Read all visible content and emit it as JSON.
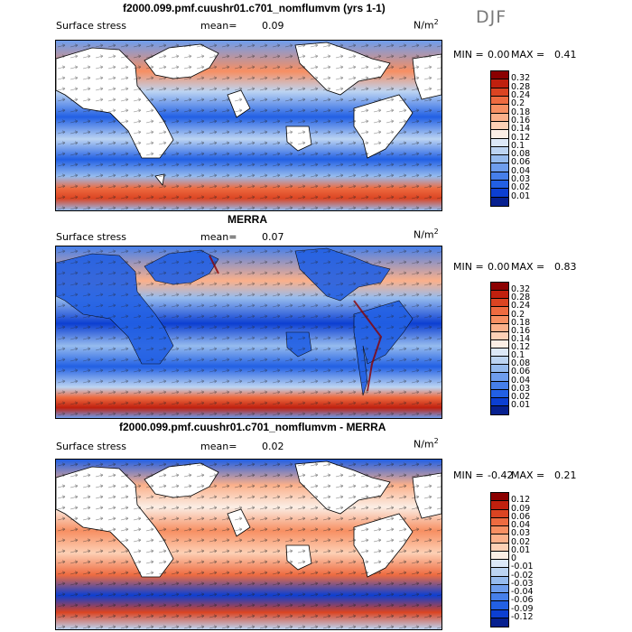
{
  "season": "DJF",
  "panels": [
    {
      "id": "model",
      "title": "f2000.099.pmf.cuushr01.c701_nomflumvm (yrs 1-1)",
      "variable": "Surface stress",
      "mean_label": "mean=",
      "mean_value": "0.09",
      "units": "N/m",
      "units_sup": "2",
      "min_label": "MIN =",
      "min_value": "0.00",
      "max_label": "MAX =",
      "max_value": "0.41",
      "ticks": [
        "0.32",
        "0.28",
        "0.24",
        "0.2",
        "0.18",
        "0.16",
        "0.14",
        "0.12",
        "0.1",
        "0.08",
        "0.06",
        "0.04",
        "0.03",
        "0.02",
        "0.01"
      ],
      "colors": [
        "#8b0000",
        "#c0200e",
        "#db4422",
        "#ee6b40",
        "#f78f62",
        "#fbb08a",
        "#fdd0b5",
        "#fbeee5",
        "#dce8f7",
        "#bcd4f2",
        "#96bbee",
        "#6e9ded",
        "#467fea",
        "#2260e4",
        "#0c3fd2",
        "#07208f"
      ]
    },
    {
      "id": "obs",
      "title": "MERRA",
      "variable": "Surface stress",
      "mean_label": "mean=",
      "mean_value": "0.07",
      "units": "N/m",
      "units_sup": "2",
      "min_label": "MIN =",
      "min_value": "0.00",
      "max_label": "MAX =",
      "max_value": "0.83",
      "ticks": [
        "0.32",
        "0.28",
        "0.24",
        "0.2",
        "0.18",
        "0.16",
        "0.14",
        "0.12",
        "0.1",
        "0.08",
        "0.06",
        "0.04",
        "0.03",
        "0.02",
        "0.01"
      ],
      "colors": [
        "#8b0000",
        "#c0200e",
        "#db4422",
        "#ee6b40",
        "#f78f62",
        "#fbb08a",
        "#fdd0b5",
        "#fbeee5",
        "#dce8f7",
        "#bcd4f2",
        "#96bbee",
        "#6e9ded",
        "#467fea",
        "#2260e4",
        "#0c3fd2",
        "#07208f"
      ]
    },
    {
      "id": "diff",
      "title": "f2000.099.pmf.cuushr01.c701_nomflumvm - MERRA",
      "variable": "Surface stress",
      "mean_label": "mean=",
      "mean_value": "0.02",
      "units": "N/m",
      "units_sup": "2",
      "min_label": "MIN =",
      "min_value": "-0.42",
      "max_label": "MAX =",
      "max_value": "0.21",
      "ticks": [
        "0.12",
        "0.09",
        "0.06",
        "0.04",
        "0.03",
        "0.02",
        "0.01",
        "0",
        "-0.01",
        "-0.02",
        "-0.03",
        "-0.04",
        "-0.06",
        "-0.09",
        "-0.12"
      ],
      "colors": [
        "#8b0000",
        "#c0200e",
        "#db4422",
        "#ee6b40",
        "#f78f62",
        "#fbb08a",
        "#fdd0b5",
        "#fbeee5",
        "#dce8f7",
        "#bcd4f2",
        "#96bbee",
        "#6e9ded",
        "#467fea",
        "#2260e4",
        "#0c3fd2",
        "#07208f"
      ]
    }
  ]
}
